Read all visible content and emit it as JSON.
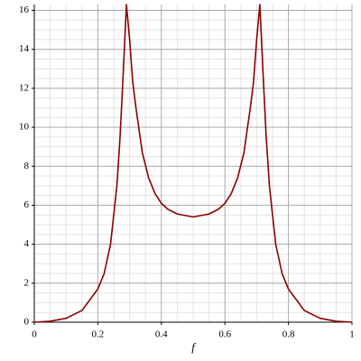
{
  "chart_data": {
    "type": "line",
    "x_label": "f",
    "x": [
      0,
      0.05,
      0.1,
      0.15,
      0.2,
      0.22,
      0.24,
      0.26,
      0.27,
      0.28,
      0.29,
      0.3,
      0.31,
      0.32,
      0.34,
      0.36,
      0.38,
      0.4,
      0.42,
      0.45,
      0.5,
      0.55,
      0.58,
      0.6,
      0.62,
      0.64,
      0.66,
      0.68,
      0.69,
      0.7,
      0.71,
      0.72,
      0.73,
      0.74,
      0.76,
      0.78,
      0.8,
      0.85,
      0.9,
      0.95,
      1
    ],
    "values": [
      0,
      0.05,
      0.2,
      0.6,
      1.7,
      2.5,
      4.0,
      7.0,
      9.5,
      12.8,
      16.3,
      14.5,
      12.3,
      11,
      8.7,
      7.4,
      6.6,
      6.1,
      5.8,
      5.55,
      5.4,
      5.55,
      5.8,
      6.1,
      6.6,
      7.4,
      8.7,
      11,
      12.3,
      14.5,
      16.3,
      12.8,
      9.5,
      7.0,
      4.0,
      2.5,
      1.7,
      0.6,
      0.2,
      0.05,
      0
    ],
    "color": "#8b0000",
    "xlim": [
      0,
      1
    ],
    "ylim": [
      0,
      16.3
    ],
    "xticks": [
      0,
      0.2,
      0.4,
      0.6,
      0.8,
      1
    ],
    "yticks": [
      0,
      2,
      4,
      6,
      8,
      10,
      12,
      14,
      16
    ],
    "grid": true
  }
}
